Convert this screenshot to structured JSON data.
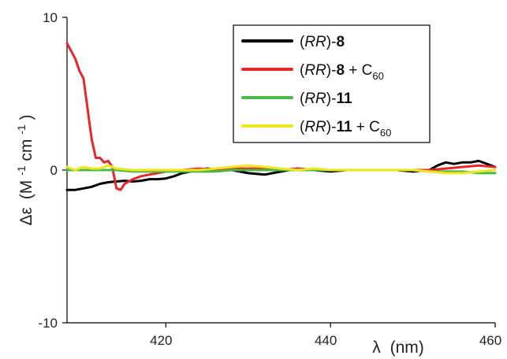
{
  "chart_data": {
    "type": "line",
    "title": "",
    "xlabel": {
      "lambda": "λ",
      "unit": "(nm)"
    },
    "ylabel": {
      "delta": "Δε",
      "open": "(M",
      "exp1": "-1",
      "mid": " cm",
      "exp2": "-1",
      "close": ")"
    },
    "xlim": [
      408,
      460
    ],
    "ylim": [
      -10,
      10
    ],
    "xticks": [
      "420",
      "440",
      "460"
    ],
    "yticks": [
      "10",
      "0",
      "-10"
    ],
    "xtick_values": [
      420,
      440,
      460
    ],
    "ytick_values": [
      10,
      0,
      -10
    ],
    "grid": false,
    "legend_position": "top-right",
    "series": [
      {
        "label": {
          "open": "(",
          "rr": "RR",
          "close": ")-",
          "num": "8",
          "plus": "",
          "c": "",
          "sub": ""
        },
        "color": "#000000",
        "x": [
          408,
          409,
          410,
          411,
          412,
          413,
          414,
          415,
          416,
          417,
          418,
          419,
          420,
          421,
          422,
          423,
          424,
          425,
          426,
          428,
          430,
          432,
          434,
          436,
          438,
          440,
          442,
          444,
          446,
          448,
          450,
          452,
          453,
          454,
          455,
          456,
          457,
          458,
          459,
          460
        ],
        "y": [
          -1.3,
          -1.3,
          -1.2,
          -1.1,
          -0.9,
          -0.8,
          -0.75,
          -0.7,
          -0.75,
          -0.7,
          -0.6,
          -0.6,
          -0.55,
          -0.4,
          -0.2,
          -0.1,
          0.0,
          0.1,
          0.05,
          0.0,
          -0.2,
          -0.3,
          -0.1,
          0.1,
          0.0,
          -0.1,
          0.0,
          0.0,
          0.0,
          0.0,
          -0.1,
          0.0,
          0.3,
          0.5,
          0.4,
          0.5,
          0.5,
          0.6,
          0.4,
          0.2
        ]
      },
      {
        "label": {
          "open": "(",
          "rr": "RR",
          "close": ")-",
          "num": "8",
          "plus": " + C",
          "c": "",
          "sub": "60"
        },
        "color": "#e8262a",
        "x": [
          408,
          408.5,
          409,
          409.5,
          410,
          410.5,
          411,
          411.5,
          412,
          412.5,
          413,
          413.5,
          414,
          414.5,
          415,
          416,
          417,
          418,
          419,
          420,
          422,
          424,
          426,
          428,
          430,
          432,
          434,
          436,
          438,
          440,
          442,
          444,
          446,
          448,
          450,
          452,
          454,
          456,
          458,
          460
        ],
        "y": [
          8.3,
          7.8,
          7.3,
          6.5,
          6.0,
          4.0,
          2.0,
          0.8,
          0.8,
          0.5,
          0.6,
          0.2,
          -1.2,
          -1.3,
          -0.9,
          -0.6,
          -0.4,
          -0.3,
          -0.2,
          -0.1,
          0.0,
          0.1,
          0.0,
          0.1,
          0.1,
          0.1,
          0.0,
          0.1,
          0.0,
          0.0,
          0.0,
          0.0,
          0.0,
          0.0,
          0.0,
          0.0,
          0.1,
          0.2,
          0.3,
          0.2
        ]
      },
      {
        "label": {
          "open": "(",
          "rr": "RR",
          "close": ")-",
          "num": "11",
          "plus": "",
          "c": "",
          "sub": ""
        },
        "color": "#4bb848",
        "x": [
          408,
          410,
          412,
          414,
          416,
          418,
          420,
          422,
          424,
          426,
          428,
          430,
          432,
          434,
          436,
          438,
          440,
          442,
          444,
          446,
          448,
          450,
          452,
          454,
          456,
          458,
          460
        ],
        "y": [
          0.0,
          0.0,
          0.0,
          0.0,
          -0.1,
          -0.1,
          -0.1,
          -0.1,
          -0.1,
          -0.1,
          0.0,
          0.0,
          0.0,
          0.0,
          0.0,
          0.0,
          0.0,
          0.0,
          0.0,
          0.0,
          0.0,
          0.0,
          -0.1,
          -0.1,
          -0.1,
          -0.2,
          -0.2
        ]
      },
      {
        "label": {
          "open": "(",
          "rr": "RR",
          "close": ")-",
          "num": "11",
          "plus": " + C",
          "c": "",
          "sub": "60"
        },
        "color": "#f0e61e",
        "x": [
          408,
          409,
          410,
          411,
          412,
          413,
          414,
          416,
          418,
          420,
          422,
          424,
          426,
          428,
          430,
          432,
          434,
          436,
          438,
          440,
          442,
          444,
          446,
          448,
          450,
          452,
          454,
          456,
          458,
          460
        ],
        "y": [
          0.2,
          0.0,
          0.2,
          0.1,
          0.1,
          0.3,
          0.1,
          0.0,
          0.0,
          0.0,
          0.0,
          0.0,
          0.1,
          0.2,
          0.3,
          0.2,
          0.1,
          0.0,
          0.1,
          0.0,
          0.0,
          0.0,
          0.0,
          0.0,
          0.0,
          -0.1,
          -0.2,
          -0.2,
          -0.1,
          0.0
        ]
      }
    ]
  }
}
